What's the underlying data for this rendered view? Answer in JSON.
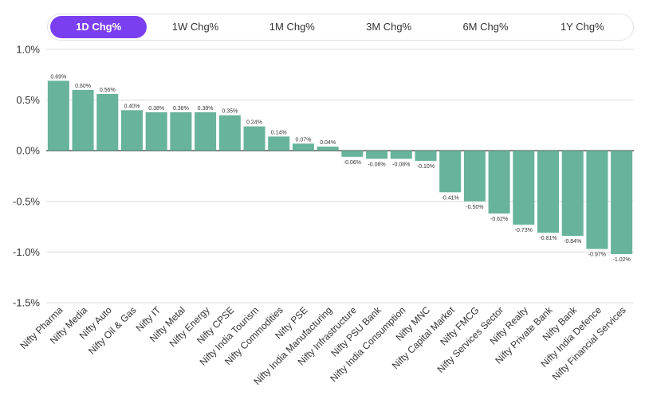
{
  "tabs": [
    {
      "label": "1D Chg%",
      "active": true
    },
    {
      "label": "1W Chg%",
      "active": false
    },
    {
      "label": "1M Chg%",
      "active": false
    },
    {
      "label": "3M Chg%",
      "active": false
    },
    {
      "label": "6M Chg%",
      "active": false
    },
    {
      "label": "1Y Chg%",
      "active": false
    }
  ],
  "colors": {
    "accent": "#7b3ff2",
    "bar": "#67b39b",
    "grid": "#d9d9d9"
  },
  "chart_data": {
    "type": "bar",
    "title": "",
    "xlabel": "",
    "ylabel": "",
    "ylim": [
      -1.5,
      1.0
    ],
    "yticks": [
      1.0,
      0.5,
      0.0,
      -0.5,
      -1.0,
      -1.5
    ],
    "ytick_labels": [
      "1.0%",
      "0.5%",
      "0.0%",
      "-0.5%",
      "-1.0%",
      "-1.5%"
    ],
    "grid": true,
    "categories": [
      "Nifty Pharma",
      "Nifty Media",
      "Nifty Auto",
      "Nifty Oil & Gas",
      "Nifty IT",
      "Nifty Metal",
      "Nifty Energy",
      "Nifty CPSE",
      "Nifty India Tourism",
      "Nifty Commodities",
      "Nifty PSE",
      "Nifty India Manufacturing",
      "Nifty Infrastructure",
      "Nifty PSU Bank",
      "Nifty India Consumption",
      "Nifty MNC",
      "Nifty Capital Market",
      "Nifty FMCG",
      "Nifty Services Sector",
      "Nifty Realty",
      "Nifty Private Bank",
      "Nifty Bank",
      "Nifty India Defence",
      "Nifty Financial Services"
    ],
    "values": [
      0.69,
      0.6,
      0.56,
      0.4,
      0.38,
      0.38,
      0.38,
      0.35,
      0.24,
      0.14,
      0.07,
      0.04,
      -0.06,
      -0.08,
      -0.08,
      -0.1,
      -0.41,
      -0.5,
      -0.62,
      -0.73,
      -0.81,
      -0.84,
      -0.97,
      -1.02
    ],
    "value_labels": [
      "0.69%",
      "0.60%",
      "0.56%",
      "0.40%",
      "0.38%",
      "0.38%",
      "0.38%",
      "0.35%",
      "0.24%",
      "0.14%",
      "0.07%",
      "0.04%",
      "-0.06%",
      "-0.08%",
      "-0.08%",
      "-0.10%",
      "-0.41%",
      "-0.50%",
      "-0.62%",
      "-0.73%",
      "-0.81%",
      "-0.84%",
      "-0.97%",
      "-1.02%"
    ]
  }
}
